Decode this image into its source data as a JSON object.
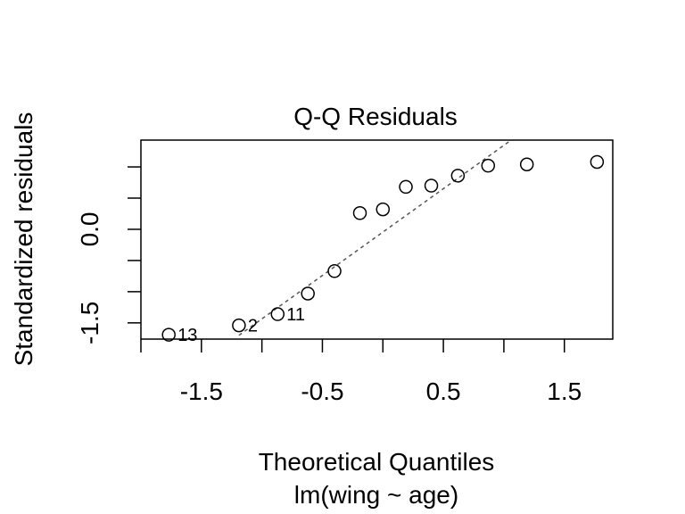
{
  "chart_data": {
    "type": "scatter",
    "title": "Q-Q Residuals",
    "xlabel": "Theoretical Quantiles",
    "subtitle": "lm(wing ~ age)",
    "ylabel": "Standardized residuals",
    "xlim": [
      -2.0,
      1.9
    ],
    "ylim": [
      -1.76,
      1.43
    ],
    "x_ticks": [
      -2.0,
      -1.5,
      -1.0,
      -0.5,
      0.0,
      0.5,
      1.0,
      1.5
    ],
    "x_tick_labels": [
      "",
      "-1.5",
      "",
      "-0.5",
      "",
      "0.5",
      "",
      "1.5"
    ],
    "y_ticks": [
      -1.5,
      -1.0,
      -0.5,
      0.0,
      0.5,
      1.0
    ],
    "y_tick_labels": [
      "-1.5",
      "",
      "",
      "0.0",
      "",
      ""
    ],
    "points": [
      {
        "x": -1.77,
        "y": -1.69,
        "label": "13"
      },
      {
        "x": -1.19,
        "y": -1.54,
        "label": "2"
      },
      {
        "x": -0.87,
        "y": -1.36,
        "label": "11"
      },
      {
        "x": -0.62,
        "y": -1.03,
        "label": ""
      },
      {
        "x": -0.4,
        "y": -0.67,
        "label": ""
      },
      {
        "x": -0.19,
        "y": 0.26,
        "label": ""
      },
      {
        "x": 0.0,
        "y": 0.32,
        "label": ""
      },
      {
        "x": 0.19,
        "y": 0.68,
        "label": ""
      },
      {
        "x": 0.4,
        "y": 0.7,
        "label": ""
      },
      {
        "x": 0.62,
        "y": 0.86,
        "label": ""
      },
      {
        "x": 0.87,
        "y": 1.02,
        "label": ""
      },
      {
        "x": 1.19,
        "y": 1.04,
        "label": ""
      },
      {
        "x": 1.77,
        "y": 1.08,
        "label": ""
      }
    ],
    "reference_line": {
      "x": [
        -1.19,
        1.06
      ],
      "y": [
        -1.7,
        1.43
      ]
    },
    "grid": false,
    "legend": "none"
  }
}
